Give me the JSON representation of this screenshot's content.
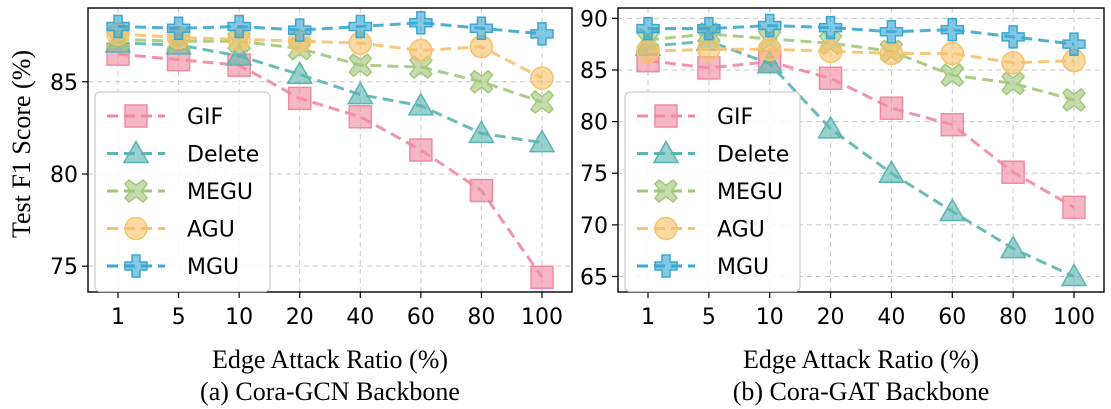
{
  "figure": {
    "ylabel": "Test F1 Score (%)"
  },
  "chart_data": [
    {
      "type": "line",
      "title": "(a) Cora-GCN Backbone",
      "xlabel": "Edge Attack Ratio (%)",
      "ylabel": "Test F1 Score (%)",
      "categories": [
        "1",
        "5",
        "10",
        "20",
        "40",
        "60",
        "80",
        "100"
      ],
      "ylim": [
        73.6,
        89.0
      ],
      "yticks": [
        75,
        80,
        85
      ],
      "grid": true,
      "legend_position": "lower-left",
      "series": [
        {
          "name": "GIF",
          "color": "#f08aa2",
          "marker": "square",
          "values": [
            86.5,
            86.2,
            85.9,
            84.1,
            83.1,
            81.3,
            79.1,
            74.4
          ]
        },
        {
          "name": "Delete",
          "color": "#5bb5b1",
          "marker": "triangle",
          "values": [
            87.1,
            87.0,
            86.4,
            85.4,
            84.3,
            83.7,
            82.2,
            81.7
          ]
        },
        {
          "name": "MEGU",
          "color": "#a3c77a",
          "marker": "x",
          "values": [
            87.3,
            87.2,
            87.2,
            86.8,
            85.9,
            85.8,
            85.0,
            83.9
          ]
        },
        {
          "name": "AGU",
          "color": "#f7c26b",
          "marker": "circle",
          "values": [
            87.6,
            87.4,
            87.3,
            87.2,
            87.1,
            86.7,
            86.9,
            85.2
          ]
        },
        {
          "name": "MGU",
          "color": "#3aa7d3",
          "marker": "plus",
          "values": [
            88.0,
            87.9,
            88.0,
            87.8,
            88.0,
            88.2,
            87.9,
            87.6
          ]
        }
      ]
    },
    {
      "type": "line",
      "title": "(b) Cora-GAT Backbone",
      "xlabel": "Edge Attack Ratio (%)",
      "ylabel": "",
      "categories": [
        "1",
        "5",
        "10",
        "20",
        "40",
        "60",
        "80",
        "100"
      ],
      "ylim": [
        63.5,
        91.0
      ],
      "yticks": [
        65,
        70,
        75,
        80,
        85,
        90
      ],
      "grid": true,
      "legend_position": "lower-left",
      "series": [
        {
          "name": "GIF",
          "color": "#f08aa2",
          "marker": "square",
          "values": [
            85.9,
            85.2,
            85.8,
            84.2,
            81.3,
            79.7,
            75.1,
            71.7
          ]
        },
        {
          "name": "Delete",
          "color": "#5bb5b1",
          "marker": "triangle",
          "values": [
            87.3,
            87.8,
            85.6,
            79.3,
            75.0,
            71.3,
            67.7,
            65.0
          ]
        },
        {
          "name": "MEGU",
          "color": "#a3c77a",
          "marker": "x",
          "values": [
            87.9,
            88.5,
            88.0,
            87.6,
            86.8,
            84.5,
            83.7,
            82.1
          ]
        },
        {
          "name": "AGU",
          "color": "#f7c26b",
          "marker": "circle",
          "values": [
            86.8,
            87.0,
            87.0,
            86.8,
            86.6,
            86.6,
            85.7,
            85.9
          ]
        },
        {
          "name": "MGU",
          "color": "#3aa7d3",
          "marker": "plus",
          "values": [
            89.0,
            89.0,
            89.3,
            89.1,
            88.7,
            88.9,
            88.2,
            87.5
          ]
        }
      ]
    }
  ]
}
